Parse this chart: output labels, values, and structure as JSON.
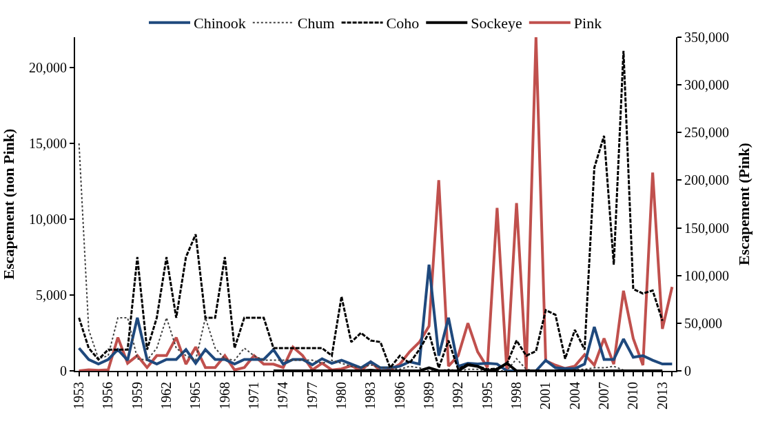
{
  "chart_data": {
    "type": "line",
    "ylabel": "Escapement (non Pink)",
    "y2label": "Escapement (Pink)",
    "x": [
      1953,
      1954,
      1955,
      1956,
      1957,
      1958,
      1959,
      1960,
      1961,
      1962,
      1963,
      1964,
      1965,
      1966,
      1967,
      1968,
      1969,
      1970,
      1971,
      1972,
      1973,
      1974,
      1975,
      1976,
      1977,
      1978,
      1979,
      1980,
      1981,
      1982,
      1983,
      1984,
      1985,
      1986,
      1987,
      1988,
      1989,
      1990,
      1991,
      1992,
      1993,
      1994,
      1995,
      1996,
      1997,
      1998,
      1999,
      2000,
      2001,
      2002,
      2003,
      2004,
      2005,
      2006,
      2007,
      2008,
      2009,
      2010,
      2011,
      2012,
      2013,
      2014
    ],
    "series": [
      {
        "name": "Chinook",
        "color": "#1f497d",
        "line_style": "solid",
        "values": [
          1500,
          750,
          450,
          750,
          1400,
          700,
          3500,
          750,
          450,
          750,
          750,
          1400,
          500,
          1400,
          750,
          750,
          450,
          750,
          750,
          750,
          1400,
          450,
          750,
          750,
          400,
          800,
          500,
          700,
          450,
          200,
          600,
          200,
          200,
          300,
          600,
          450,
          7000,
          1000,
          3500,
          300,
          500,
          450,
          500,
          450,
          0,
          0,
          0,
          0,
          700,
          200,
          150,
          150,
          450,
          2900,
          750,
          750,
          2100,
          900,
          1000,
          700,
          450,
          450
        ]
      },
      {
        "name": "Chum",
        "color": "#404040",
        "line_style": "dotted",
        "values": [
          15000,
          2700,
          800,
          1000,
          3500,
          3500,
          800,
          700,
          1500,
          3500,
          1500,
          1000,
          700,
          3500,
          1500,
          800,
          700,
          1500,
          1000,
          700,
          700,
          700,
          700,
          700,
          700,
          500,
          700,
          500,
          300,
          200,
          400,
          200,
          200,
          100,
          300,
          200,
          0,
          0,
          100,
          0,
          100,
          100,
          0,
          0,
          0,
          800,
          100,
          0,
          0,
          0,
          0,
          100,
          100,
          200,
          200,
          300,
          50,
          0,
          0,
          0,
          0,
          null
        ]
      },
      {
        "name": "Coho",
        "color": "#000000",
        "line_style": "dashed",
        "values": [
          3500,
          1500,
          750,
          1400,
          1400,
          1400,
          7500,
          1400,
          3500,
          7500,
          3500,
          7500,
          9000,
          3500,
          3500,
          7500,
          1500,
          3500,
          3500,
          3500,
          1500,
          1500,
          1500,
          1500,
          1500,
          1500,
          1000,
          4900,
          1900,
          2500,
          2000,
          1900,
          200,
          1000,
          500,
          1400,
          2500,
          200,
          2000,
          100,
          450,
          300,
          100,
          150,
          450,
          2000,
          1000,
          1300,
          4000,
          3700,
          800,
          2700,
          1400,
          13400,
          15500,
          7000,
          21100,
          5400,
          5100,
          5300,
          3300,
          null
        ]
      },
      {
        "name": "Sockeye",
        "color": "#000000",
        "line_style": "solid",
        "values": [
          null,
          null,
          null,
          null,
          null,
          null,
          null,
          null,
          null,
          null,
          null,
          null,
          null,
          null,
          null,
          null,
          null,
          null,
          null,
          null,
          0,
          0,
          0,
          0,
          0,
          0,
          0,
          0,
          0,
          0,
          50,
          0,
          0,
          0,
          0,
          0,
          200,
          0,
          0,
          0,
          400,
          300,
          0,
          100,
          500,
          0,
          0,
          0,
          0,
          0,
          0,
          0,
          0,
          0,
          0,
          0,
          0,
          0,
          0,
          0,
          0,
          null
        ]
      },
      {
        "name": "Pink",
        "color": "#c0504d",
        "line_style": "solid",
        "axis": "y2",
        "values": [
          0,
          1000,
          500,
          1000,
          35000,
          8000,
          16000,
          3500,
          16000,
          16000,
          35000,
          7000,
          25000,
          3500,
          3500,
          16000,
          1000,
          3500,
          16000,
          7000,
          7000,
          3500,
          25000,
          16000,
          1000,
          8000,
          1000,
          2000,
          5500,
          0,
          9500,
          0,
          1000,
          7000,
          20000,
          30000,
          47000,
          200000,
          5000,
          16000,
          50000,
          20000,
          3500,
          171000,
          0,
          176000,
          1000,
          350000,
          10700,
          6000,
          2500,
          5000,
          17000,
          6000,
          34000,
          7000,
          84000,
          34000,
          6000,
          208000,
          44000,
          88000
        ]
      }
    ],
    "xlim": [
      1952.6,
      2014.4
    ],
    "xticks": [
      1953,
      {
        "value": 1954,
        "label": null
      },
      {
        "value": 1955,
        "label": null
      },
      1956,
      {
        "value": 1957,
        "label": null
      },
      {
        "value": 1958,
        "label": null
      },
      1959,
      {
        "value": 1960,
        "label": null
      },
      {
        "value": 1961,
        "label": null
      },
      1962,
      {
        "value": 1963,
        "label": null
      },
      {
        "value": 1964,
        "label": null
      },
      1965,
      {
        "value": 1966,
        "label": null
      },
      {
        "value": 1967,
        "label": null
      },
      1968,
      {
        "value": 1969,
        "label": null
      },
      {
        "value": 1970,
        "label": null
      },
      1971,
      {
        "value": 1972,
        "label": null
      },
      {
        "value": 1973,
        "label": null
      },
      1974,
      {
        "value": 1975,
        "label": null
      },
      {
        "value": 1976,
        "label": null
      },
      1977,
      {
        "value": 1978,
        "label": null
      },
      {
        "value": 1979,
        "label": null
      },
      1980,
      {
        "value": 1981,
        "label": null
      },
      {
        "value": 1982,
        "label": null
      },
      1983,
      {
        "value": 1984,
        "label": null
      },
      {
        "value": 1985,
        "label": null
      },
      1986,
      {
        "value": 1987,
        "label": null
      },
      {
        "value": 1988,
        "label": null
      },
      1989,
      {
        "value": 1990,
        "label": null
      },
      {
        "value": 1991,
        "label": null
      },
      1992,
      {
        "value": 1993,
        "label": null
      },
      {
        "value": 1994,
        "label": null
      },
      1995,
      {
        "value": 1996,
        "label": null
      },
      {
        "value": 1997,
        "label": null
      },
      1998,
      {
        "value": 1999,
        "label": null
      },
      {
        "value": 2000,
        "label": null
      },
      2001,
      {
        "value": 2002,
        "label": null
      },
      {
        "value": 2003,
        "label": null
      },
      2004,
      {
        "value": 2005,
        "label": null
      },
      {
        "value": 2006,
        "label": null
      },
      2007,
      {
        "value": 2008,
        "label": null
      },
      {
        "value": 2009,
        "label": null
      },
      2010,
      {
        "value": 2011,
        "label": null
      },
      {
        "value": 2012,
        "label": null
      },
      2013,
      {
        "value": 2014,
        "label": null
      }
    ],
    "ylim": [
      0,
      22000
    ],
    "yticks": [
      0,
      {
        "value": 5000,
        "label": "5,000"
      },
      {
        "value": 10000,
        "label": "10,000"
      },
      {
        "value": 15000,
        "label": "15,000"
      },
      {
        "value": 20000,
        "label": "20,000"
      }
    ],
    "y2lim": [
      0,
      350000
    ],
    "y2ticks": [
      0,
      {
        "value": 50000,
        "label": "50,000"
      },
      {
        "value": 100000,
        "label": "100,000"
      },
      {
        "value": 150000,
        "label": "150,000"
      },
      {
        "value": 200000,
        "label": "200,000"
      },
      {
        "value": 250000,
        "label": "250,000"
      },
      {
        "value": 300000,
        "label": "300,000"
      },
      {
        "value": 350000,
        "label": "350,000"
      }
    ],
    "legend": "top",
    "marker": "none"
  }
}
